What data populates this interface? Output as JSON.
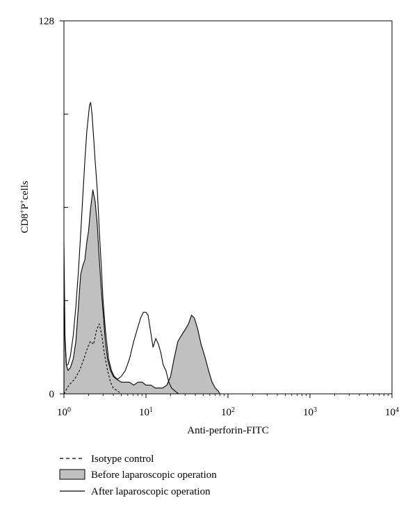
{
  "chart_data": {
    "type": "area",
    "xscale": "log",
    "xlim": [
      1,
      10000
    ],
    "ylim": [
      0,
      128
    ],
    "x_ticks": [
      {
        "value": 1,
        "base": "10",
        "exp": "0"
      },
      {
        "value": 10,
        "base": "10",
        "exp": "1"
      },
      {
        "value": 100,
        "base": "10",
        "exp": "2"
      },
      {
        "value": 1000,
        "base": "10",
        "exp": "3"
      },
      {
        "value": 10000,
        "base": "10",
        "exp": "4"
      }
    ],
    "y_ticks": [
      {
        "value": 0,
        "label": "0"
      },
      {
        "value": 128,
        "label": "128"
      }
    ],
    "y_minor_ticks": [
      32,
      64,
      96
    ],
    "xlabel": "Anti-perforin-FITC",
    "ylabel": {
      "a": "CD8",
      "a_sup": "+",
      "b": "P",
      "b_sup": "+",
      "c": "cells"
    },
    "grid": false,
    "legend_position": "bottom-left",
    "series": [
      {
        "name": "Isotype control",
        "style": "dashed",
        "fill": null,
        "x": [
          1.0,
          1.15,
          1.35,
          1.55,
          1.75,
          1.95,
          2.1,
          2.3,
          2.5,
          2.7,
          2.9,
          3.1,
          3.4,
          3.7,
          4.0,
          4.5,
          5.0
        ],
        "y": [
          0,
          3,
          5,
          8,
          12,
          16,
          18,
          17,
          22,
          24,
          20,
          14,
          8,
          4,
          2,
          1,
          0
        ]
      },
      {
        "name": "Before laparoscopic operation",
        "style": "solid",
        "fill": "#c0c0c0",
        "x": [
          1.0,
          1.03,
          1.07,
          1.12,
          1.2,
          1.3,
          1.4,
          1.5,
          1.6,
          1.7,
          1.8,
          1.9,
          2.0,
          2.1,
          2.25,
          2.4,
          2.55,
          2.7,
          2.85,
          3.0,
          3.2,
          3.4,
          3.7,
          4.0,
          4.4,
          5.0,
          5.6,
          6.3,
          7.1,
          8.0,
          9.0,
          10.0,
          11.5,
          13.0,
          14.5,
          16.0,
          18.0,
          20.0,
          22.0,
          24.5,
          27.0,
          30.0,
          33.0,
          36.0,
          39.0,
          43.0,
          47.0,
          52.0,
          58.0,
          64.0,
          70.0,
          76.0,
          80.0
        ],
        "y": [
          30,
          18,
          10,
          8,
          9,
          12,
          18,
          30,
          41,
          44,
          46,
          52,
          56,
          63,
          70,
          66,
          58,
          46,
          36,
          28,
          18,
          12,
          8,
          6,
          5,
          4,
          4,
          4,
          3,
          4,
          4,
          3,
          3,
          2,
          2,
          2,
          3,
          6,
          12,
          18,
          20,
          22,
          24,
          27,
          26,
          22,
          17,
          13,
          8,
          4,
          2,
          1,
          0
        ]
      },
      {
        "name": "After laparoscopic operation",
        "style": "solid",
        "fill": null,
        "x": [
          1.0,
          1.03,
          1.07,
          1.12,
          1.2,
          1.3,
          1.4,
          1.5,
          1.6,
          1.7,
          1.8,
          1.9,
          2.0,
          2.05,
          2.12,
          2.2,
          2.3,
          2.4,
          2.55,
          2.7,
          2.85,
          3.0,
          3.2,
          3.5,
          3.8,
          4.1,
          4.5,
          5.0,
          5.6,
          6.3,
          7.1,
          7.8,
          8.6,
          9.3,
          10.0,
          10.6,
          11.3,
          12.2,
          13.2,
          14.2,
          15.2,
          16.2,
          17.5,
          19.0,
          20.5,
          22.5,
          25.0
        ],
        "y": [
          52,
          20,
          10,
          10,
          13,
          20,
          30,
          42,
          55,
          68,
          80,
          90,
          96,
          99,
          100,
          96,
          88,
          80,
          70,
          56,
          44,
          32,
          22,
          12,
          8,
          6,
          5,
          6,
          8,
          12,
          18,
          22,
          26,
          28,
          28,
          27,
          22,
          16,
          19,
          17,
          14,
          10,
          8,
          4,
          2,
          1,
          0
        ]
      }
    ]
  }
}
